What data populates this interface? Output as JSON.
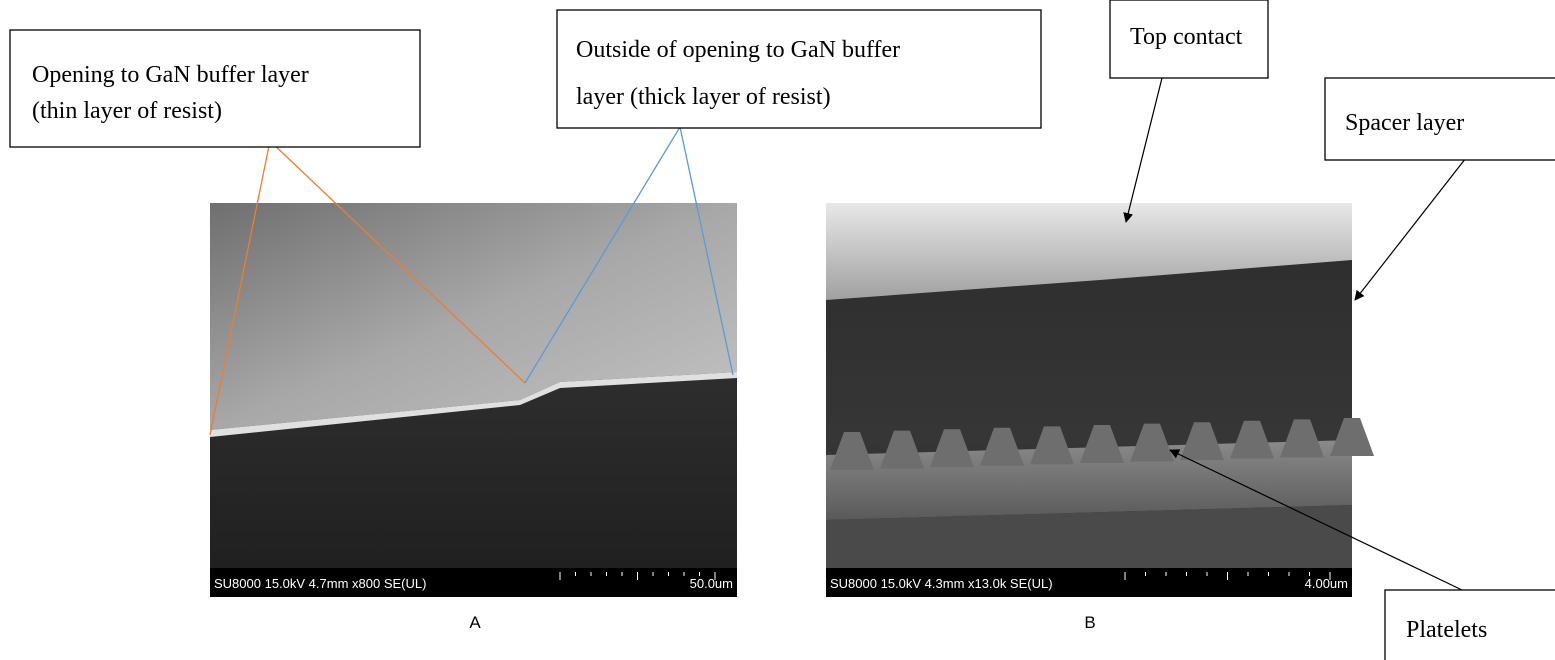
{
  "callouts": [
    {
      "lines": [
        "Opening to GaN buffer layer",
        "(thin layer of resist)"
      ]
    },
    {
      "lines": [
        "Outside of opening to GaN buffer",
        "layer (thick layer of resist)"
      ]
    },
    {
      "lines": [
        "Top contact"
      ]
    },
    {
      "lines": [
        "Spacer layer"
      ]
    },
    {
      "lines": [
        "Platelets"
      ]
    }
  ],
  "panels": [
    {
      "info": "SU8000 15.0kV 4.7mm x800 SE(UL)",
      "scale": "50.0um",
      "caption": "A"
    },
    {
      "info": "SU8000 15.0kV 4.3mm x13.0k SE(UL)",
      "scale": "4.00um",
      "caption": "B"
    }
  ]
}
